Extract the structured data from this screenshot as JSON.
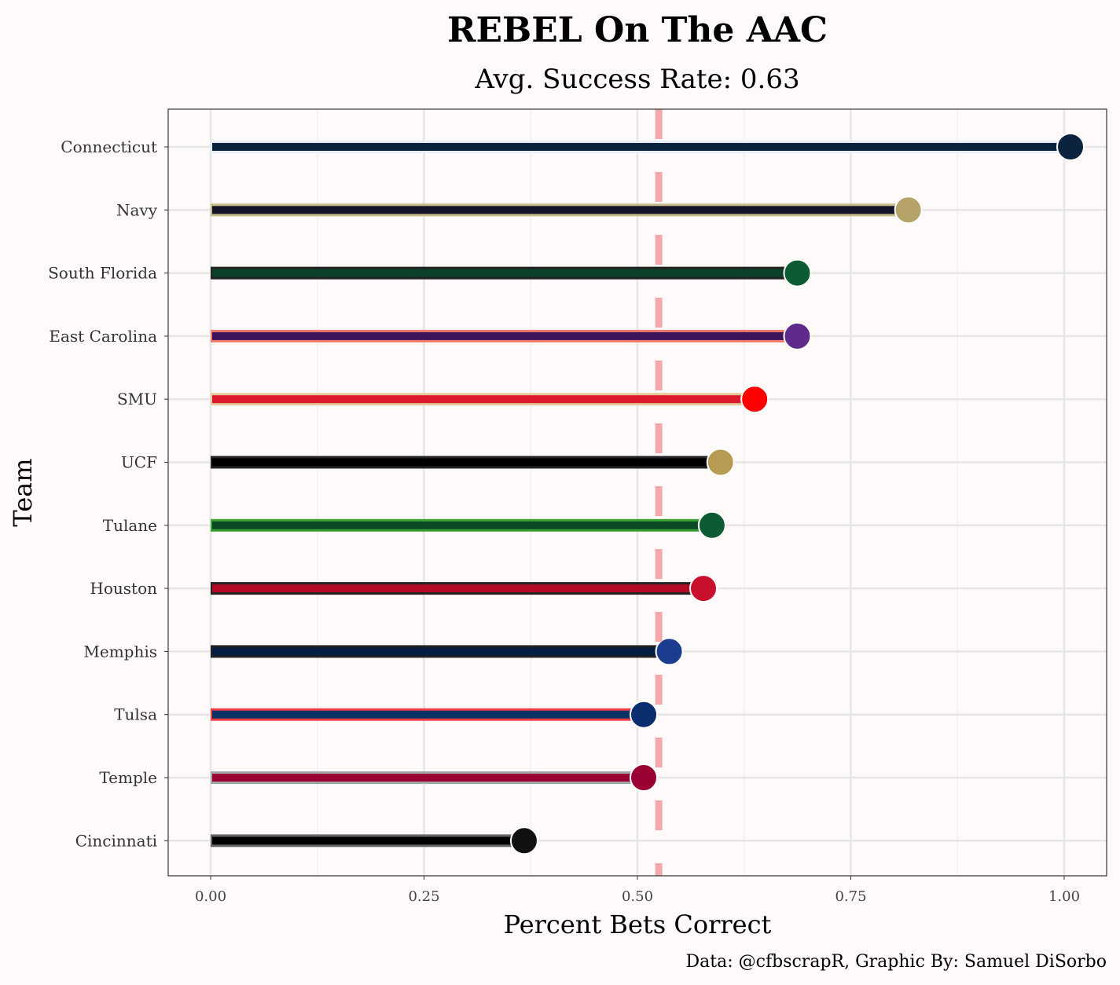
{
  "chart_data": {
    "type": "bar",
    "orientation": "horizontal",
    "title": "REBEL On The AAC",
    "subtitle": "Avg. Success Rate: 0.63",
    "xlabel": "Percent Bets Correct",
    "ylabel": "Team",
    "caption": "Data: @cfbscrapR, Graphic By: Samuel DiSorbo",
    "xlim": [
      0,
      1
    ],
    "xticks": [
      "0.00",
      "0.25",
      "0.50",
      "0.75",
      "1.00"
    ],
    "grid": true,
    "reference_line": {
      "value": 0.525,
      "style": "dashed",
      "color": "#f4a0a4"
    },
    "categories": [
      "Connecticut",
      "Navy",
      "South Florida",
      "East Carolina",
      "SMU",
      "UCF",
      "Tulane",
      "Houston",
      "Memphis",
      "Tulsa",
      "Temple",
      "Cincinnati"
    ],
    "values": [
      1.0,
      0.81,
      0.68,
      0.68,
      0.63,
      0.59,
      0.58,
      0.57,
      0.53,
      0.5,
      0.5,
      0.36
    ],
    "fill_colors": [
      "#0c2340",
      "#13132a",
      "#0b4128",
      "#3d1458",
      "#dc1a2d",
      "#000000",
      "#0b4a24",
      "#b50a24",
      "#041e42",
      "#073263",
      "#9b0032",
      "#000000"
    ],
    "outline_colors": [
      "#e8eef8",
      "#c5b783",
      "#222222",
      "#ef7a6c",
      "#e5ca9b",
      "#222222",
      "#3aa232",
      "#222222",
      "#222222",
      "#ef3e42",
      "#a2a4a8",
      "#666666"
    ],
    "logo_colors": [
      "#0c2340",
      "#b5a36a",
      "#0b5b33",
      "#5f2a8c",
      "#ff0000",
      "#b89b53",
      "#0b5b33",
      "#c8102e",
      "#1b3c8f",
      "#0a2d6e",
      "#9b0032",
      "#111111"
    ]
  }
}
